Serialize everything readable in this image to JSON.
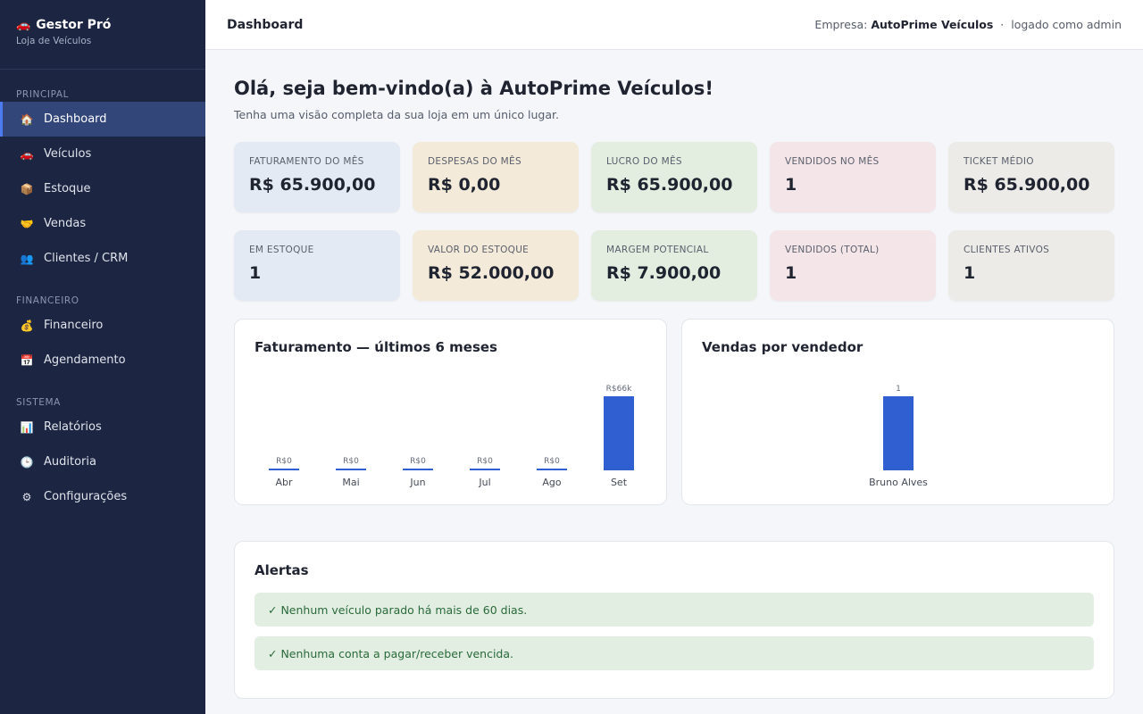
{
  "brand": {
    "icon": "car-icon",
    "title": "Gestor Pró",
    "subtitle": "Loja de Veículos"
  },
  "sidebar": {
    "sections": [
      {
        "label": "PRINCIPAL"
      },
      {
        "label": "FINANCEIRO"
      },
      {
        "label": "SISTEMA"
      }
    ],
    "items": [
      {
        "label": "Dashboard",
        "icon": "home-icon",
        "active": true
      },
      {
        "label": "Veículos",
        "icon": "car-icon"
      },
      {
        "label": "Estoque",
        "icon": "box-icon"
      },
      {
        "label": "Vendas",
        "icon": "handshake-icon"
      },
      {
        "label": "Clientes / CRM",
        "icon": "users-icon"
      },
      {
        "label": "Financeiro",
        "icon": "money-bag-icon"
      },
      {
        "label": "Agendamento",
        "icon": "calendar-icon"
      },
      {
        "label": "Relatórios",
        "icon": "bar-chart-icon"
      },
      {
        "label": "Auditoria",
        "icon": "clock-icon"
      },
      {
        "label": "Configurações",
        "icon": "gear-icon"
      }
    ]
  },
  "topbar": {
    "title": "Dashboard",
    "company_label": "Empresa:",
    "company_name": "AutoPrime Veículos",
    "separator": "·",
    "logged_as": "logado como admin"
  },
  "welcome": {
    "title": "Olá, seja bem-vindo(a) à AutoPrime Veículos!",
    "subtitle": "Tenha uma visão completa da sua loja em um único lugar."
  },
  "stats_row1": [
    {
      "label": "FATURAMENTO DO MÊS",
      "value": "R$ 65.900,00",
      "color": "#e4eaf3"
    },
    {
      "label": "DESPESAS DO MÊS",
      "value": "R$ 0,00",
      "color": "#f3ead9"
    },
    {
      "label": "LUCRO DO MÊS",
      "value": "R$ 65.900,00",
      "color": "#e3ede0"
    },
    {
      "label": "VENDIDOS NO MÊS",
      "value": "1",
      "color": "#f4e5e8"
    },
    {
      "label": "TICKET MÉDIO",
      "value": "R$ 65.900,00",
      "color": "#ecebe8"
    }
  ],
  "stats_row2": [
    {
      "label": "EM ESTOQUE",
      "value": "1",
      "color": "#e4eaf3"
    },
    {
      "label": "VALOR DO ESTOQUE",
      "value": "R$ 52.000,00",
      "color": "#f3ead9"
    },
    {
      "label": "MARGEM POTENCIAL",
      "value": "R$ 7.900,00",
      "color": "#e3ede0"
    },
    {
      "label": "VENDIDOS (TOTAL)",
      "value": "1",
      "color": "#f4e5e8"
    },
    {
      "label": "CLIENTES ATIVOS",
      "value": "1",
      "color": "#ecebe8"
    }
  ],
  "charts": {
    "revenue_title": "Faturamento — últimos 6 meses",
    "sellers_title": "Vendas por vendedor",
    "bar_color": "#2f5fd0"
  },
  "chart_data": [
    {
      "type": "bar",
      "title": "Faturamento — últimos 6 meses",
      "categories": [
        "Abr",
        "Mai",
        "Jun",
        "Jul",
        "Ago",
        "Set"
      ],
      "values": [
        0,
        0,
        0,
        0,
        0,
        65900
      ],
      "value_labels": [
        "R$0",
        "R$0",
        "R$0",
        "R$0",
        "R$0",
        "R$66k"
      ]
    },
    {
      "type": "bar",
      "title": "Vendas por vendedor",
      "categories": [
        "Bruno Alves"
      ],
      "values": [
        1
      ],
      "value_labels": [
        "1"
      ]
    }
  ],
  "alerts": {
    "title": "Alertas",
    "items": [
      "✓ Nenhum veículo parado há mais de 60 dias.",
      "✓ Nenhuma conta a pagar/receber vencida."
    ],
    "color": "#e2eee2"
  }
}
